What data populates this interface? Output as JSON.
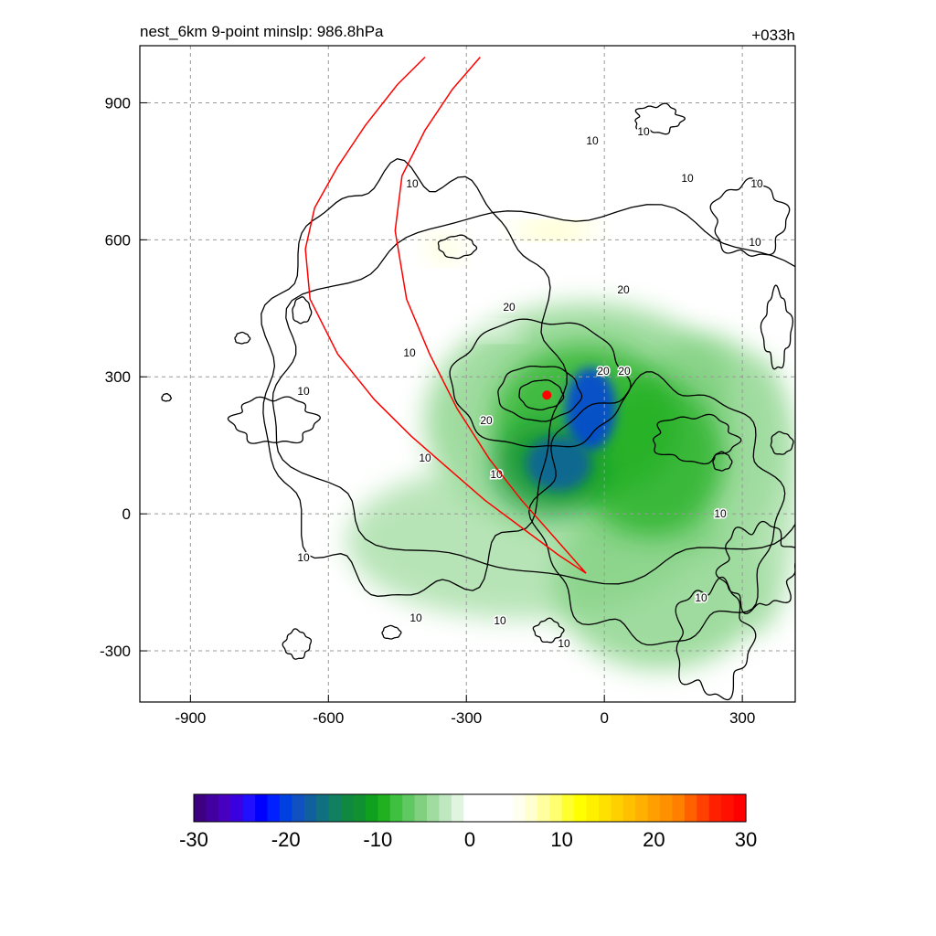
{
  "chart_data": {
    "type": "heatmap",
    "title": "nest_6km  9-point minslp: 986.8hPa",
    "forecast_hour": "+033h",
    "xlabel": "",
    "ylabel": "",
    "xlim": [
      -1010,
      415
    ],
    "ylim": [
      -412,
      1025
    ],
    "xticks": [
      -900,
      -600,
      -300,
      0,
      300
    ],
    "yticks": [
      -300,
      0,
      300,
      600,
      900
    ],
    "xtick_labels": [
      "-900",
      "-600",
      "-300",
      "0",
      "300"
    ],
    "ytick_labels": [
      "-300",
      "0",
      "300",
      "600",
      "900"
    ],
    "grid": true,
    "storm_center": {
      "x": -125,
      "y": 260
    },
    "fill_field": {
      "description_colors": "negative = green/blue, positive = yellow/red",
      "blobs": [
        {
          "cx": -40,
          "cy": 200,
          "rx": 350,
          "ry": 260,
          "value": -6
        },
        {
          "cx": -180,
          "cy": -60,
          "rx": 380,
          "ry": 170,
          "value": -4
        },
        {
          "cx": 220,
          "cy": 150,
          "rx": 170,
          "ry": 240,
          "value": -5
        },
        {
          "cx": 120,
          "cy": -150,
          "rx": 230,
          "ry": 190,
          "value": -6
        },
        {
          "cx": 330,
          "cy": 40,
          "rx": 90,
          "ry": 300,
          "value": -4
        },
        {
          "cx": -40,
          "cy": 200,
          "rx": 200,
          "ry": 170,
          "value": -10
        },
        {
          "cx": 100,
          "cy": 120,
          "rx": 160,
          "ry": 170,
          "value": -9
        },
        {
          "cx": -120,
          "cy": 100,
          "rx": 120,
          "ry": 100,
          "value": -12
        },
        {
          "cx": -30,
          "cy": 230,
          "rx": 55,
          "ry": 90,
          "value": -20
        },
        {
          "cx": -100,
          "cy": 110,
          "rx": 70,
          "ry": 60,
          "value": -18
        },
        {
          "cx": -110,
          "cy": 620,
          "rx": 90,
          "ry": 18,
          "value": 8
        },
        {
          "cx": -350,
          "cy": 580,
          "rx": 45,
          "ry": 30,
          "value": 6
        },
        {
          "cx": -420,
          "cy": 520,
          "rx": 30,
          "ry": 60,
          "value": 4
        },
        {
          "cx": -680,
          "cy": 800,
          "rx": 25,
          "ry": 50,
          "value": 3
        },
        {
          "cx": -230,
          "cy": 400,
          "rx": 50,
          "ry": 20,
          "value": 4
        }
      ]
    },
    "contours": {
      "color": "#000000",
      "labels": [
        "10",
        "10",
        "10",
        "10",
        "10",
        "10",
        "10",
        "10",
        "10",
        "10",
        "10",
        "10",
        "10",
        "10",
        "10",
        "10",
        "20",
        "20",
        "20",
        "20",
        "20"
      ]
    },
    "tracks": {
      "color": "#ff0000",
      "series": [
        {
          "points": [
            [
              -390,
              1000
            ],
            [
              -450,
              940
            ],
            [
              -520,
              850
            ],
            [
              -580,
              760
            ],
            [
              -630,
              670
            ],
            [
              -650,
              580
            ],
            [
              -640,
              470
            ],
            [
              -580,
              350
            ],
            [
              -500,
              250
            ],
            [
              -420,
              170
            ],
            [
              -340,
              100
            ],
            [
              -260,
              30
            ],
            [
              -180,
              -30
            ],
            [
              -100,
              -90
            ],
            [
              -40,
              -130
            ]
          ]
        },
        {
          "points": [
            [
              -270,
              1000
            ],
            [
              -330,
              930
            ],
            [
              -390,
              840
            ],
            [
              -440,
              740
            ],
            [
              -455,
              620
            ],
            [
              -430,
              470
            ],
            [
              -380,
              350
            ],
            [
              -320,
              230
            ],
            [
              -250,
              120
            ],
            [
              -180,
              30
            ],
            [
              -110,
              -50
            ],
            [
              -40,
              -130
            ]
          ]
        }
      ]
    },
    "colorbar": {
      "min": -30,
      "max": 30,
      "tick_labels": [
        "-30",
        "-20",
        "-10",
        "0",
        "10",
        "20",
        "30"
      ],
      "colors": [
        "#3d0080",
        "#4200a0",
        "#4700c0",
        "#3a00e0",
        "#2010ff",
        "#0000ff",
        "#0020ff",
        "#0040e0",
        "#1050c0",
        "#1060a0",
        "#107080",
        "#108060",
        "#108840",
        "#109030",
        "#10a020",
        "#20b020",
        "#40c040",
        "#60c860",
        "#80d080",
        "#a0dca0",
        "#c0e8c0",
        "#e0f4e0",
        "#ffffff",
        "#ffffff",
        "#ffffff",
        "#ffffff",
        "#fffff0",
        "#ffffd0",
        "#ffffa0",
        "#ffff70",
        "#ffff30",
        "#ffff00",
        "#fff000",
        "#ffe000",
        "#ffd000",
        "#ffc000",
        "#ffb000",
        "#ffa000",
        "#ff9000",
        "#ff8000",
        "#ff6000",
        "#ff4000",
        "#ff2000",
        "#ff1000",
        "#ff0000"
      ]
    }
  }
}
